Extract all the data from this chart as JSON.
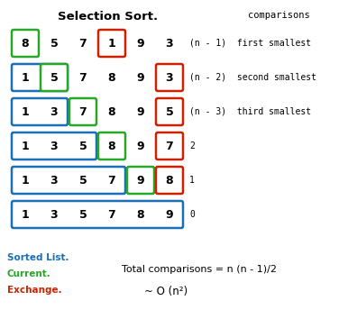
{
  "title": "Selection Sort.",
  "bg_color": "#ffffff",
  "rows": [
    {
      "numbers": [
        8,
        5,
        7,
        1,
        9,
        3
      ],
      "boxes": [
        {
          "idx": 0,
          "color": "#28a828",
          "span": 1
        },
        {
          "idx": 3,
          "color": "#cc2200",
          "span": 1
        }
      ],
      "comparison": "(n - 1)  first smallest"
    },
    {
      "numbers": [
        1,
        5,
        7,
        8,
        9,
        3
      ],
      "boxes": [
        {
          "idx": 0,
          "color": "#1a6fb5",
          "span": 2
        },
        {
          "idx": 1,
          "color": "#28a828",
          "span": 1
        },
        {
          "idx": 5,
          "color": "#cc2200",
          "span": 1
        }
      ],
      "comparison": "(n - 2)  second smallest"
    },
    {
      "numbers": [
        1,
        3,
        7,
        8,
        9,
        5
      ],
      "boxes": [
        {
          "idx": 0,
          "color": "#1a6fb5",
          "span": 2
        },
        {
          "idx": 2,
          "color": "#28a828",
          "span": 1
        },
        {
          "idx": 5,
          "color": "#cc2200",
          "span": 1
        }
      ],
      "comparison": "(n - 3)  third smallest"
    },
    {
      "numbers": [
        1,
        3,
        5,
        8,
        9,
        7
      ],
      "boxes": [
        {
          "idx": 0,
          "color": "#1a6fb5",
          "span": 3
        },
        {
          "idx": 3,
          "color": "#28a828",
          "span": 1
        },
        {
          "idx": 5,
          "color": "#cc2200",
          "span": 1
        }
      ],
      "comparison": "2"
    },
    {
      "numbers": [
        1,
        3,
        5,
        7,
        9,
        8
      ],
      "boxes": [
        {
          "idx": 0,
          "color": "#1a6fb5",
          "span": 4
        },
        {
          "idx": 4,
          "color": "#28a828",
          "span": 1
        },
        {
          "idx": 5,
          "color": "#cc2200",
          "span": 1
        }
      ],
      "comparison": "1"
    },
    {
      "numbers": [
        1,
        3,
        5,
        7,
        8,
        9
      ],
      "boxes": [
        {
          "idx": 0,
          "color": "#1a6fb5",
          "span": 6
        }
      ],
      "comparison": "0"
    }
  ],
  "legend": [
    {
      "label": "Sorted List.",
      "color": "#1a6fb5"
    },
    {
      "label": "Current.",
      "color": "#28a828"
    },
    {
      "label": "Exchange.",
      "color": "#cc2200"
    }
  ],
  "formula1": "Total comparisons = n (n - 1)/2",
  "formula2": "~ O (n²)",
  "comparisons_label": "comparisons"
}
